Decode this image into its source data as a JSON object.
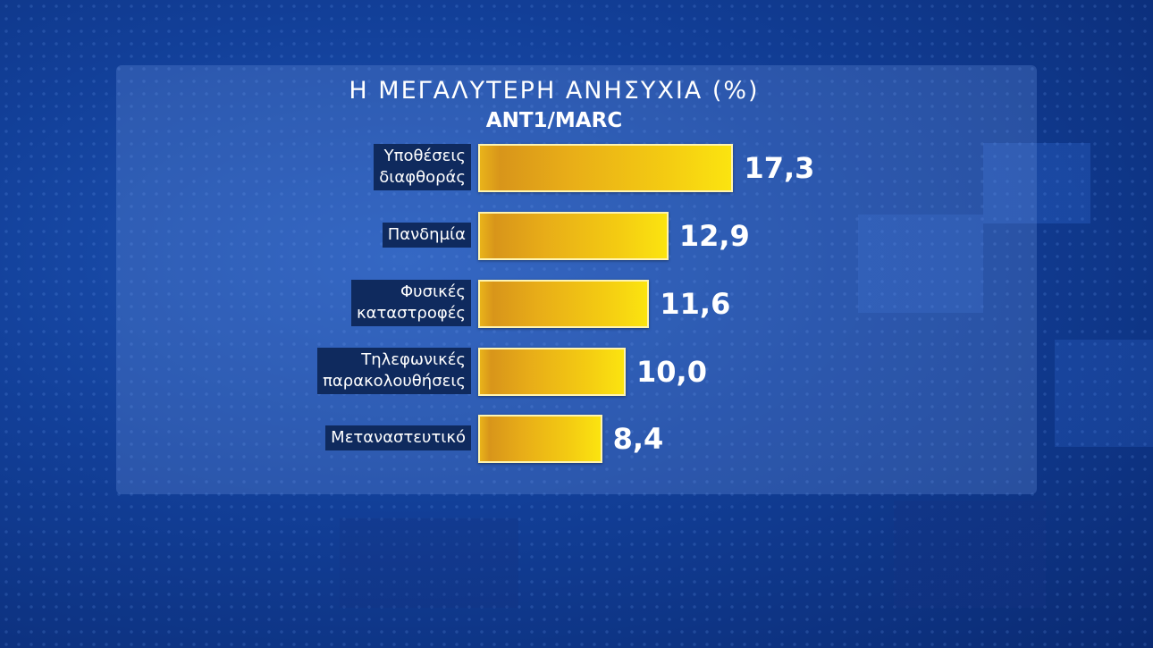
{
  "chart_data": {
    "type": "bar",
    "orientation": "horizontal",
    "title": "Η ΜΕΓΑΛΥΤΕΡΗ ΑΝΗΣΥΧΙΑ (%)",
    "subtitle": "ANT1/MARC",
    "categories": [
      "Υποθέσεις\nδιαφθοράς",
      "Πανδημία",
      "Φυσικές\nκαταστροφές",
      "Τηλεφωνικές\nπαρακολουθήσεις",
      "Μεταναστευτικό"
    ],
    "values": [
      17.3,
      12.9,
      11.6,
      10.0,
      8.4
    ],
    "value_labels": [
      "17,3",
      "12,9",
      "11,6",
      "10,0",
      "8,4"
    ],
    "xlabel": "",
    "ylabel": "",
    "grid": false,
    "bar_color": "#f0c214",
    "background_color": "#123f98"
  }
}
